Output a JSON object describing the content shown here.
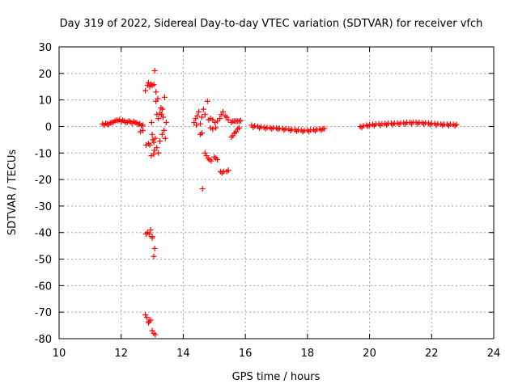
{
  "chart_data": {
    "type": "scatter",
    "title": "Day 319 of 2022, Sidereal Day-to-day VTEC variation (SDTVAR) for receiver vfch",
    "xlabel": "GPS time / hours",
    "ylabel": "SDTVAR / TECUs",
    "xlim": [
      10,
      24
    ],
    "ylim": [
      -80,
      30
    ],
    "xticks": [
      "10",
      "12",
      "14",
      "16",
      "18",
      "20",
      "22",
      "24"
    ],
    "yticks": [
      "-80",
      "-70",
      "-60",
      "-50",
      "-40",
      "-30",
      "-20",
      "-10",
      "0",
      "10",
      "20",
      "30"
    ],
    "grid": true,
    "marker": "+",
    "color": "#ff0000",
    "series": [
      {
        "name": "vfch",
        "points": [
          [
            11.4,
            1.0
          ],
          [
            11.5,
            1.2
          ],
          [
            11.6,
            0.8
          ],
          [
            11.7,
            1.5
          ],
          [
            11.8,
            2.0
          ],
          [
            11.9,
            2.2
          ],
          [
            12.0,
            1.8
          ],
          [
            12.1,
            2.0
          ],
          [
            12.2,
            1.6
          ],
          [
            12.3,
            1.7
          ],
          [
            12.4,
            1.9
          ],
          [
            12.5,
            1.4
          ],
          [
            12.6,
            1.0
          ],
          [
            12.7,
            0.5
          ],
          [
            11.45,
            0.5
          ],
          [
            11.55,
            0.9
          ],
          [
            11.65,
            1.3
          ],
          [
            11.75,
            1.6
          ],
          [
            11.85,
            2.4
          ],
          [
            11.95,
            2.6
          ],
          [
            12.05,
            2.3
          ],
          [
            12.15,
            1.5
          ],
          [
            12.25,
            2.1
          ],
          [
            12.35,
            1.2
          ],
          [
            12.45,
            1.5
          ],
          [
            12.55,
            0.8
          ],
          [
            12.65,
            0.3
          ],
          [
            12.62,
            -2.0
          ],
          [
            12.7,
            -1.5
          ],
          [
            12.78,
            13.5
          ],
          [
            12.85,
            15.5
          ],
          [
            12.88,
            16.5
          ],
          [
            12.92,
            15.0
          ],
          [
            12.96,
            16.0
          ],
          [
            13.0,
            15.5
          ],
          [
            13.05,
            15.8
          ],
          [
            13.08,
            21.0
          ],
          [
            13.12,
            9.5
          ],
          [
            13.18,
            10.5
          ],
          [
            13.12,
            13.0
          ],
          [
            13.28,
            7.0
          ],
          [
            13.33,
            6.5
          ],
          [
            13.35,
            3.5
          ],
          [
            13.4,
            11.0
          ],
          [
            13.3,
            4.5
          ],
          [
            13.25,
            5.0
          ],
          [
            13.2,
            3.0
          ],
          [
            13.15,
            4.5
          ],
          [
            12.98,
            1.5
          ],
          [
            13.0,
            -3.0
          ],
          [
            13.02,
            -5.0
          ],
          [
            13.05,
            -6.0
          ],
          [
            13.1,
            -4.5
          ],
          [
            13.15,
            -8.0
          ],
          [
            13.2,
            -10.0
          ],
          [
            13.25,
            -5.5
          ],
          [
            13.32,
            -3.0
          ],
          [
            13.38,
            -1.5
          ],
          [
            13.42,
            -4.5
          ],
          [
            13.45,
            1.5
          ],
          [
            12.8,
            -7.0
          ],
          [
            12.88,
            -6.5
          ],
          [
            12.92,
            -7.0
          ],
          [
            12.97,
            -11.0
          ],
          [
            13.05,
            -10.5
          ],
          [
            13.07,
            -9.0
          ],
          [
            12.8,
            -40.5
          ],
          [
            12.85,
            -40.0
          ],
          [
            12.9,
            -40.5
          ],
          [
            12.95,
            -39.0
          ],
          [
            13.0,
            -41.5
          ],
          [
            13.0,
            -42.0
          ],
          [
            13.08,
            -46.0
          ],
          [
            13.05,
            -49.0
          ],
          [
            12.78,
            -71.0
          ],
          [
            12.83,
            -72.0
          ],
          [
            12.9,
            -73.5
          ],
          [
            12.95,
            -73.0
          ],
          [
            12.88,
            -74.0
          ],
          [
            13.0,
            -77.0
          ],
          [
            13.05,
            -78.0
          ],
          [
            13.1,
            -78.5
          ],
          [
            14.35,
            1.5
          ],
          [
            14.4,
            3.0
          ],
          [
            14.45,
            4.0
          ],
          [
            14.5,
            5.5
          ],
          [
            14.42,
            0.5
          ],
          [
            14.55,
            1.0
          ],
          [
            14.6,
            3.5
          ],
          [
            14.65,
            6.5
          ],
          [
            14.7,
            4.5
          ],
          [
            14.55,
            -3.0
          ],
          [
            14.6,
            -2.5
          ],
          [
            14.62,
            -23.5
          ],
          [
            14.7,
            -10.0
          ],
          [
            14.75,
            -11.0
          ],
          [
            14.8,
            -12.0
          ],
          [
            14.85,
            -12.5
          ],
          [
            14.9,
            -13.0
          ],
          [
            15.0,
            -11.5
          ],
          [
            15.05,
            -12.0
          ],
          [
            15.1,
            -12.5
          ],
          [
            14.78,
            9.5
          ],
          [
            14.82,
            2.5
          ],
          [
            14.88,
            3.0
          ],
          [
            14.95,
            2.5
          ],
          [
            15.02,
            1.5
          ],
          [
            15.1,
            2.0
          ],
          [
            15.18,
            3.0
          ],
          [
            15.22,
            4.5
          ],
          [
            15.28,
            5.5
          ],
          [
            15.35,
            4.0
          ],
          [
            15.4,
            3.5
          ],
          [
            15.45,
            2.5
          ],
          [
            14.88,
            -0.5
          ],
          [
            14.95,
            -1.0
          ],
          [
            15.05,
            -0.5
          ],
          [
            15.2,
            -17.0
          ],
          [
            15.25,
            -17.5
          ],
          [
            15.3,
            -17.0
          ],
          [
            15.4,
            -17.0
          ],
          [
            15.45,
            -16.5
          ],
          [
            15.55,
            -4.0
          ],
          [
            15.6,
            -3.5
          ],
          [
            15.65,
            -2.5
          ],
          [
            15.7,
            -2.0
          ],
          [
            15.75,
            -1.0
          ],
          [
            15.8,
            -0.5
          ],
          [
            15.55,
            1.5
          ],
          [
            15.6,
            2.0
          ],
          [
            15.65,
            2.0
          ],
          [
            15.7,
            2.0
          ],
          [
            15.75,
            2.0
          ],
          [
            15.8,
            2.0
          ],
          [
            15.85,
            2.2
          ],
          [
            16.2,
            0.5
          ],
          [
            16.3,
            0.2
          ],
          [
            16.4,
            0.0
          ],
          [
            16.5,
            -0.2
          ],
          [
            16.6,
            -0.3
          ],
          [
            16.7,
            -0.4
          ],
          [
            16.8,
            -0.5
          ],
          [
            16.9,
            -0.5
          ],
          [
            17.0,
            -0.6
          ],
          [
            17.1,
            -0.7
          ],
          [
            17.2,
            -0.8
          ],
          [
            17.3,
            -0.9
          ],
          [
            17.4,
            -1.0
          ],
          [
            17.5,
            -1.1
          ],
          [
            17.6,
            -1.2
          ],
          [
            17.7,
            -1.3
          ],
          [
            17.8,
            -1.4
          ],
          [
            17.9,
            -1.5
          ],
          [
            18.0,
            -1.4
          ],
          [
            18.1,
            -1.3
          ],
          [
            18.2,
            -1.2
          ],
          [
            18.3,
            -1.1
          ],
          [
            18.4,
            -1.0
          ],
          [
            18.5,
            -0.9
          ],
          [
            18.55,
            -0.8
          ],
          [
            16.25,
            -0.3
          ],
          [
            16.45,
            -0.6
          ],
          [
            16.65,
            -0.8
          ],
          [
            16.85,
            -0.9
          ],
          [
            17.05,
            -1.0
          ],
          [
            17.25,
            -1.3
          ],
          [
            17.45,
            -1.5
          ],
          [
            17.65,
            -1.8
          ],
          [
            17.85,
            -2.0
          ],
          [
            18.05,
            -1.9
          ],
          [
            18.25,
            -1.7
          ],
          [
            18.45,
            -1.4
          ],
          [
            19.7,
            0.0
          ],
          [
            19.8,
            0.2
          ],
          [
            19.9,
            0.5
          ],
          [
            20.0,
            0.6
          ],
          [
            20.1,
            0.8
          ],
          [
            20.2,
            0.9
          ],
          [
            20.3,
            1.0
          ],
          [
            20.4,
            1.0
          ],
          [
            20.5,
            1.1
          ],
          [
            20.6,
            1.2
          ],
          [
            20.7,
            1.2
          ],
          [
            20.8,
            1.2
          ],
          [
            20.9,
            1.3
          ],
          [
            21.0,
            1.3
          ],
          [
            21.1,
            1.4
          ],
          [
            21.2,
            1.5
          ],
          [
            21.3,
            1.5
          ],
          [
            21.4,
            1.6
          ],
          [
            21.5,
            1.6
          ],
          [
            21.6,
            1.5
          ],
          [
            21.7,
            1.4
          ],
          [
            21.8,
            1.4
          ],
          [
            21.9,
            1.3
          ],
          [
            22.0,
            1.2
          ],
          [
            22.1,
            1.1
          ],
          [
            22.2,
            1.0
          ],
          [
            22.3,
            0.9
          ],
          [
            22.4,
            0.8
          ],
          [
            22.5,
            0.8
          ],
          [
            22.6,
            0.9
          ],
          [
            22.7,
            0.8
          ],
          [
            22.8,
            0.7
          ],
          [
            19.75,
            -0.4
          ],
          [
            19.95,
            0.1
          ],
          [
            20.15,
            0.3
          ],
          [
            20.35,
            0.4
          ],
          [
            20.55,
            0.6
          ],
          [
            20.75,
            0.7
          ],
          [
            20.95,
            0.8
          ],
          [
            21.15,
            0.9
          ],
          [
            21.35,
            1.0
          ],
          [
            21.55,
            1.0
          ],
          [
            21.75,
            0.9
          ],
          [
            21.95,
            0.7
          ],
          [
            22.15,
            0.5
          ],
          [
            22.35,
            0.4
          ],
          [
            22.55,
            0.3
          ],
          [
            22.75,
            0.3
          ]
        ]
      }
    ]
  }
}
